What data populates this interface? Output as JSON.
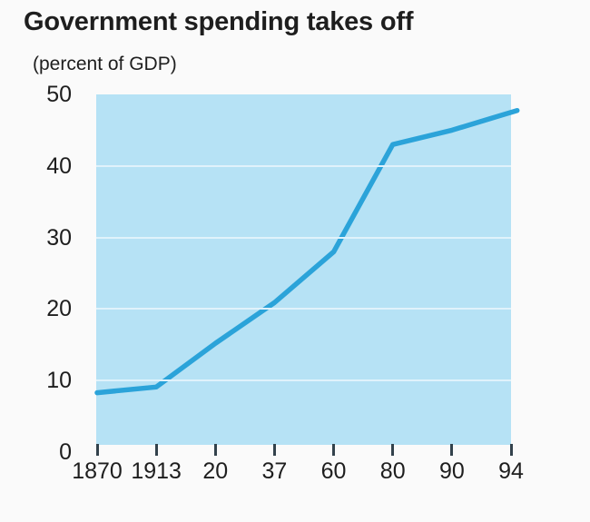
{
  "chart_data": {
    "type": "line",
    "title": "Government spending takes off",
    "subtitle": "(percent of GDP)",
    "categories": [
      "1870",
      "1913",
      "20",
      "37",
      "60",
      "80",
      "90",
      "94"
    ],
    "values": [
      8.3,
      9.1,
      15.2,
      20.9,
      28.0,
      43.0,
      45.0,
      47.5
    ],
    "xlabel": "",
    "ylabel": "",
    "ylim": [
      0,
      50
    ],
    "yticks": [
      0,
      10,
      20,
      30,
      40,
      50
    ],
    "grid": "horizontal",
    "legend": "none",
    "colors": {
      "line": "#2ba3d9",
      "plot_background": "#b6e2f5",
      "gridline": "#e0f2fb",
      "text": "#1e1e1e",
      "tick": "#33424c",
      "page_background": "#fafafa"
    }
  }
}
